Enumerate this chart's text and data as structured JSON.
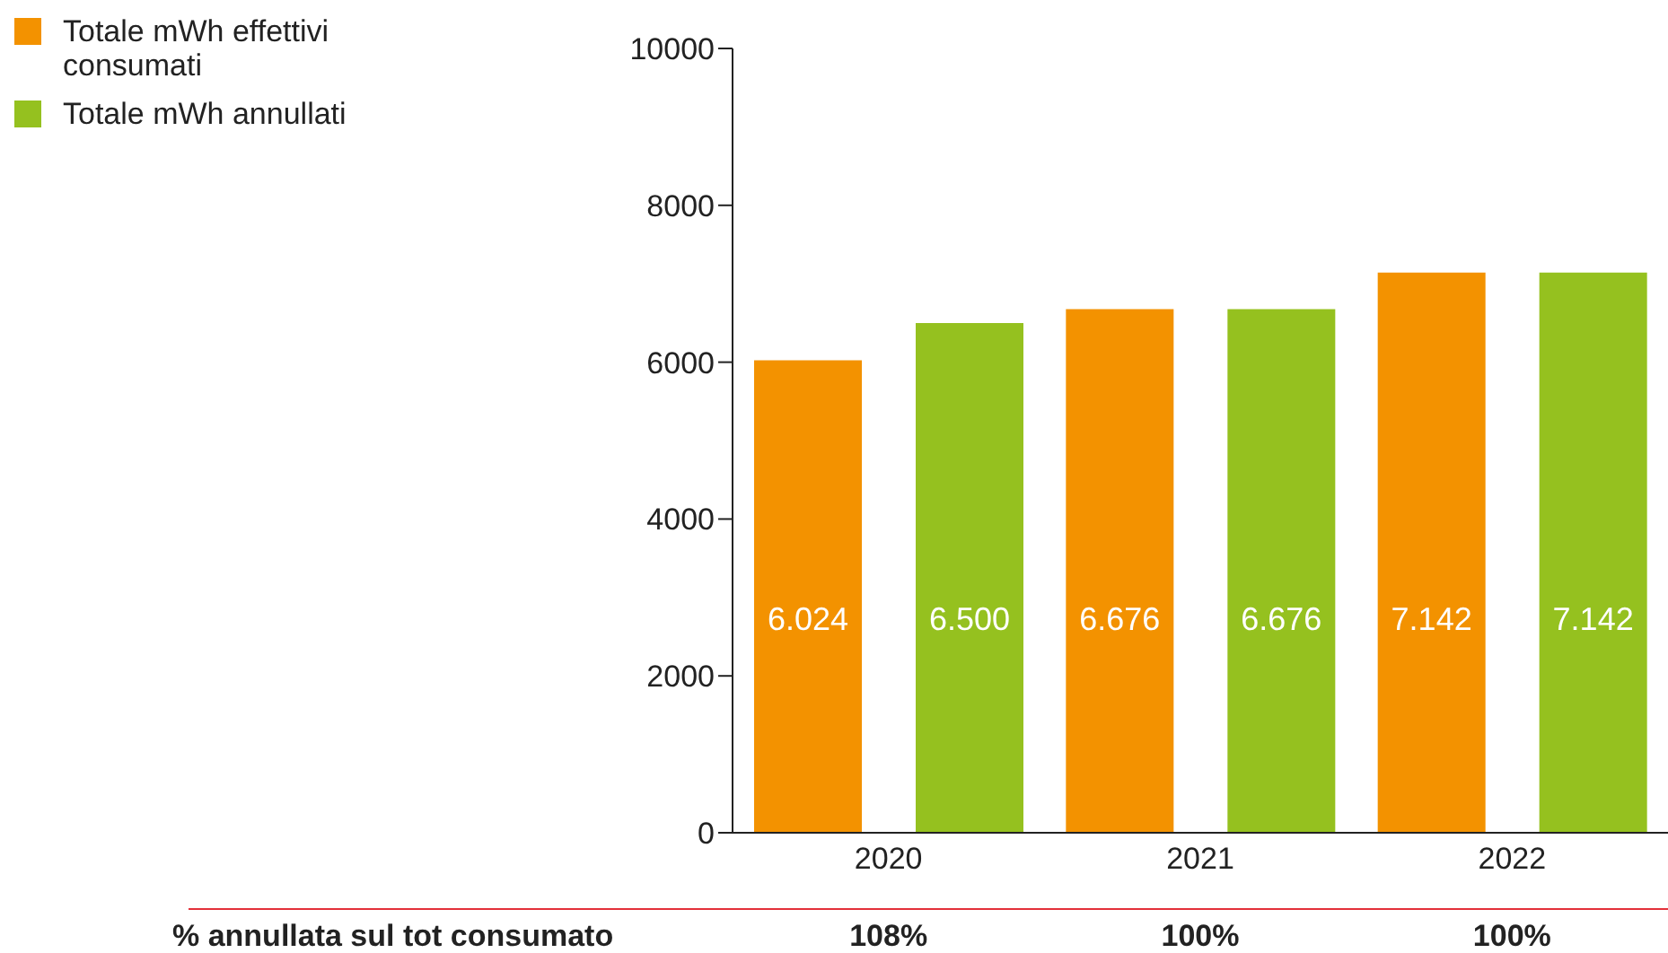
{
  "chart_data": {
    "type": "bar",
    "categories": [
      "2020",
      "2021",
      "2022"
    ],
    "series": [
      {
        "name": "Totale mWh effettivi consumati",
        "color": "#f39200",
        "values": [
          6024,
          6676,
          7142
        ],
        "value_labels": [
          "6.024",
          "6.676",
          "7.142"
        ]
      },
      {
        "name": "Totale mWh annullati",
        "color": "#95c11f",
        "values": [
          6500,
          6676,
          7142
        ],
        "value_labels": [
          "6.500",
          "6.676",
          "7.142"
        ]
      }
    ],
    "ylim": [
      0,
      10000
    ],
    "yticks": [
      0,
      2000,
      4000,
      6000,
      8000,
      10000
    ],
    "grid": false,
    "legend": "top left",
    "annotations": [
      "% annullata sul tot consumato",
      "108%",
      "100%",
      "100%"
    ]
  }
}
